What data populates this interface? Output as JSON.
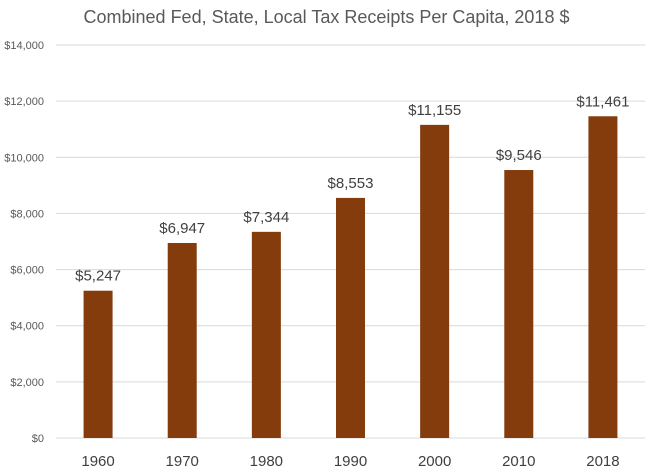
{
  "chart_data": {
    "type": "bar",
    "title": "Combined Fed, State, Local Tax Receipts Per Capita, 2018 $",
    "xlabel": "",
    "ylabel": "",
    "categories": [
      "1960",
      "1970",
      "1980",
      "1990",
      "2000",
      "2010",
      "2018"
    ],
    "series": [
      {
        "values": [
          5247,
          6947,
          7344,
          8553,
          11155,
          9546,
          11461
        ],
        "data_labels": [
          "$5,247",
          "$6,947",
          "$7,344",
          "$8,553",
          "$11,155",
          "$9,546",
          "$11,461"
        ],
        "color": "#843c0c"
      }
    ],
    "ylim": [
      0,
      14000
    ],
    "yticks": [
      0,
      2000,
      4000,
      6000,
      8000,
      10000,
      12000,
      14000
    ],
    "ytick_labels": [
      "$0",
      "$2,000",
      "$4,000",
      "$6,000",
      "$8,000",
      "$10,000",
      "$12,000",
      "$14,000"
    ],
    "grid": true,
    "legend": "none",
    "gridline_color": "#d9d9d9"
  }
}
